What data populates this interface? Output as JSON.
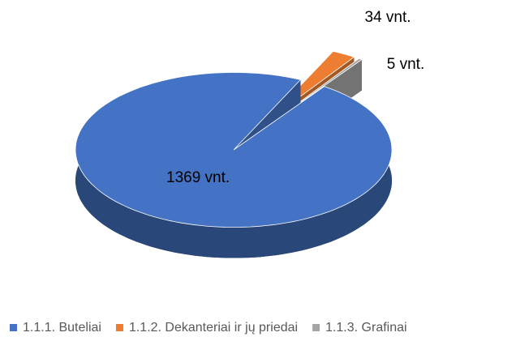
{
  "chart_data": {
    "type": "pie",
    "categories": [
      "1.1.1. Buteliai",
      "1.1.2. Dekanteriai ir jų priedai",
      "1.1.3. Grafinai"
    ],
    "values": [
      1369,
      34,
      5
    ],
    "value_labels": [
      "1369 vnt.",
      "34 vnt.",
      "5 vnt."
    ],
    "colors": [
      "#4472c4",
      "#ed7d31",
      "#a5a5a5"
    ],
    "legend": "bottom"
  }
}
